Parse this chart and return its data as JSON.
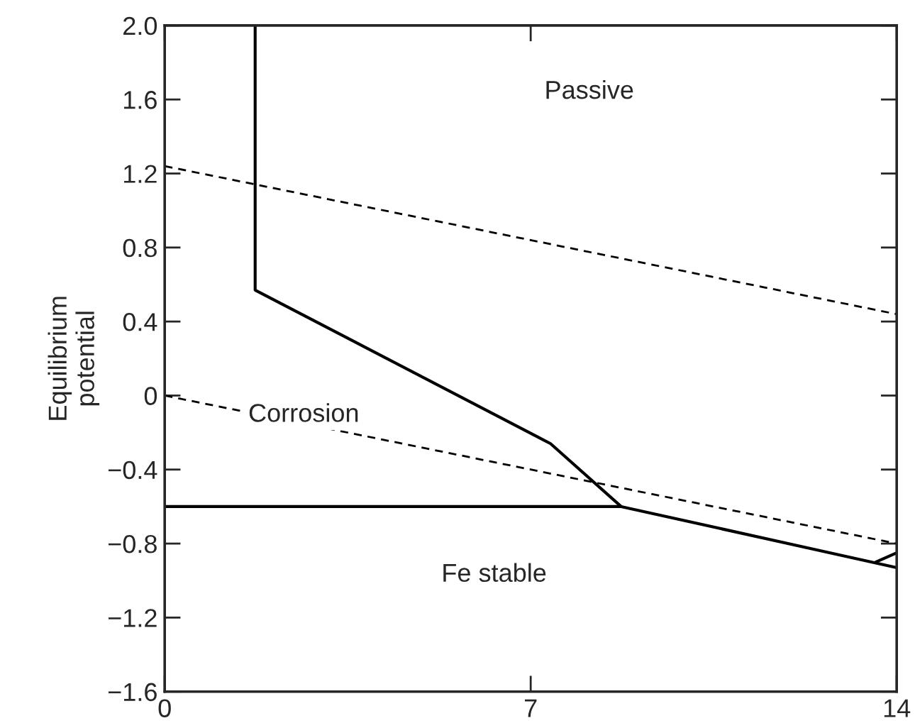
{
  "chart_data": {
    "type": "line",
    "ylabel": "Equilibrium\npotential",
    "xlim": [
      0,
      14
    ],
    "xticks": [
      0,
      7,
      14
    ],
    "ylim": [
      -1.6,
      2.0
    ],
    "yticks": [
      {
        "value": -1.6,
        "label": "−1.6"
      },
      {
        "value": -1.2,
        "label": "−1.2"
      },
      {
        "value": -0.8,
        "label": "−0.8"
      },
      {
        "value": -0.4,
        "label": "−0.4"
      },
      0,
      0.4,
      0.8,
      1.2,
      1.6,
      {
        "value": 2.0,
        "label": "2.0"
      }
    ],
    "grid": false,
    "marker": "none",
    "series": [
      {
        "color": "#000000",
        "line_style": "solid",
        "x": [
          1.73,
          1.73,
          7.38,
          8.73,
          14
        ],
        "values": [
          2.0,
          0.57,
          -0.26,
          -0.6,
          -0.93
        ]
      },
      {
        "color": "#000000",
        "line_style": "solid",
        "x": [
          0,
          8.73
        ],
        "values": [
          -0.6,
          -0.6
        ]
      },
      {
        "color": "#000000",
        "line_style": "solid",
        "x": [
          13.6,
          14
        ],
        "values": [
          -0.9,
          -0.85
        ]
      },
      {
        "color": "#000000",
        "line_style": "dashed",
        "x": [
          0,
          14
        ],
        "values": [
          1.24,
          0.44
        ]
      },
      {
        "color": "#000000",
        "line_style": "dashed",
        "x": [
          0,
          14
        ],
        "values": [
          0.0,
          -0.8
        ]
      }
    ],
    "annotations": [
      "Passive",
      "Corrosion",
      "Fe stable"
    ]
  }
}
